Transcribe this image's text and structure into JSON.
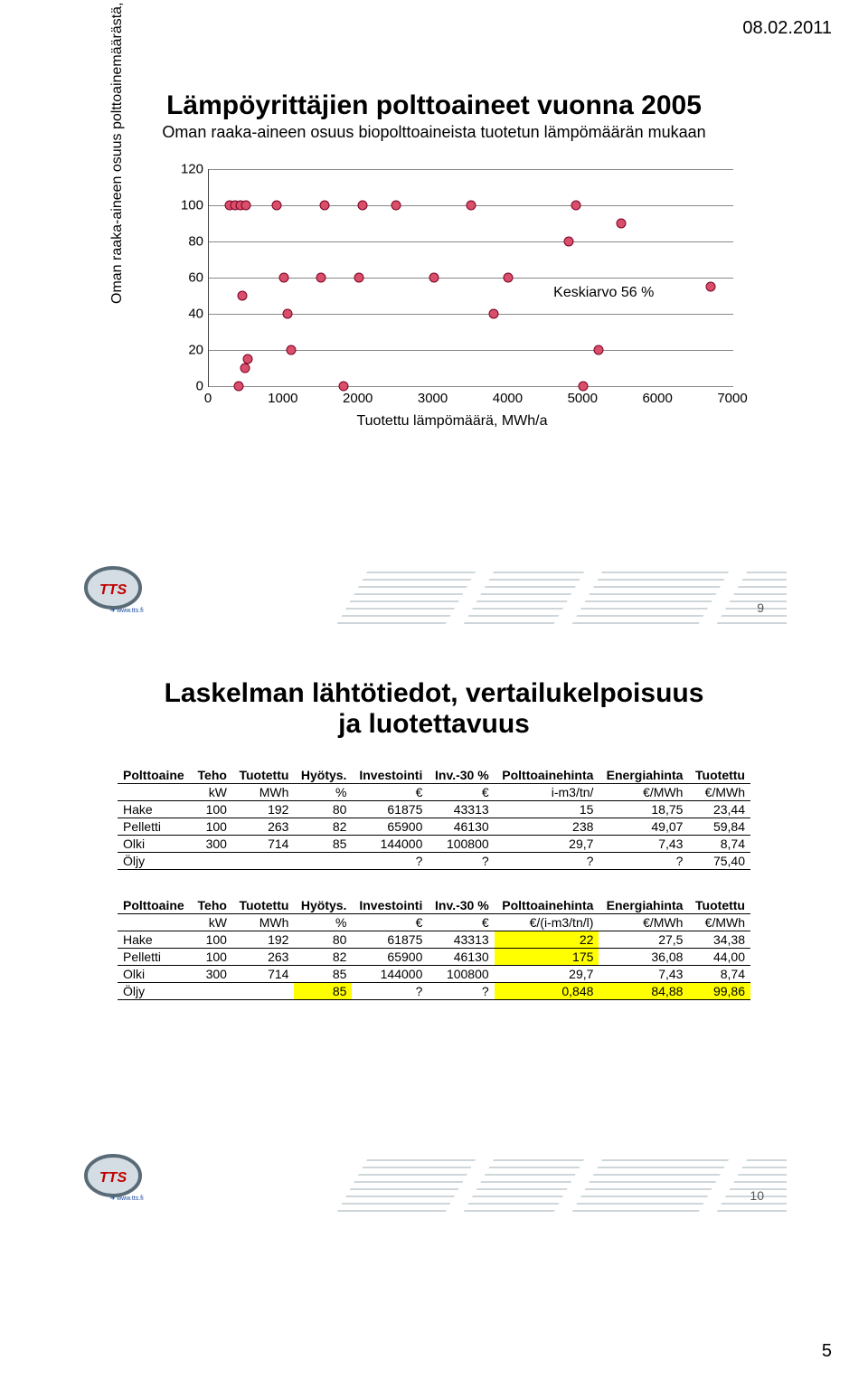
{
  "date": "08.02.2011",
  "page_number": "5",
  "slideA": {
    "title": "Lämpöyrittäjien polttoaineet vuonna 2005",
    "subtitle": "Oman raaka-aineen osuus biopolttoaineista tuotetun lämpömäärän mukaan",
    "ylabel": "Oman raaka-aineen osuus polttoainemäärästä, %",
    "xlabel": "Tuotettu lämpömäärä, MWh/a",
    "annotation": "Keskiarvo 56 %",
    "slide_num": "9",
    "chart": {
      "xlim": [
        0,
        7000
      ],
      "ylim": [
        0,
        120
      ],
      "xticks": [
        0,
        1000,
        2000,
        3000,
        4000,
        5000,
        6000,
        7000
      ],
      "yticks": [
        0,
        20,
        40,
        60,
        80,
        100,
        120
      ],
      "grid_color": "#888888",
      "marker_fill": "#d94f6a",
      "marker_border": "#7a0025",
      "points": [
        [
          280,
          100
        ],
        [
          350,
          100
        ],
        [
          400,
          0
        ],
        [
          420,
          100
        ],
        [
          450,
          50
        ],
        [
          480,
          10
        ],
        [
          500,
          100
        ],
        [
          520,
          15
        ],
        [
          900,
          100
        ],
        [
          1000,
          60
        ],
        [
          1050,
          40
        ],
        [
          1100,
          20
        ],
        [
          1500,
          60
        ],
        [
          1550,
          100
        ],
        [
          1800,
          0
        ],
        [
          2000,
          60
        ],
        [
          2050,
          100
        ],
        [
          2500,
          100
        ],
        [
          3000,
          60
        ],
        [
          3500,
          100
        ],
        [
          3800,
          40
        ],
        [
          4000,
          60
        ],
        [
          4800,
          80
        ],
        [
          4900,
          100
        ],
        [
          5000,
          0
        ],
        [
          5200,
          20
        ],
        [
          5500,
          90
        ],
        [
          6700,
          55
        ]
      ]
    }
  },
  "slideB": {
    "title": "Laskelman lähtötiedot, vertailukelpoisuus ja luotettavuus",
    "slide_num": "10",
    "table1": {
      "headers": [
        "Polttoaine",
        "Teho",
        "Tuotettu",
        "Hyötys.",
        "Investointi",
        "Inv.-30 %",
        "Polttoainehinta",
        "Energiahinta",
        "Tuotettu"
      ],
      "units": [
        "",
        "kW",
        "MWh",
        "%",
        "€",
        "€",
        "i-m3/tn/",
        "€/MWh",
        "€/MWh"
      ],
      "rows": [
        [
          "Hake",
          "100",
          "192",
          "80",
          "61875",
          "43313",
          "15",
          "18,75",
          "23,44"
        ],
        [
          "Pelletti",
          "100",
          "263",
          "82",
          "65900",
          "46130",
          "238",
          "49,07",
          "59,84"
        ],
        [
          "Olki",
          "300",
          "714",
          "85",
          "144000",
          "100800",
          "29,7",
          "7,43",
          "8,74"
        ],
        [
          "Öljy",
          "",
          "",
          "",
          "?",
          "?",
          "?",
          "?",
          "75,40"
        ]
      ]
    },
    "table2": {
      "headers": [
        "Polttoaine",
        "Teho",
        "Tuotettu",
        "Hyötys.",
        "Investointi",
        "Inv.-30 %",
        "Polttoainehinta",
        "Energiahinta",
        "Tuotettu"
      ],
      "units": [
        "",
        "kW",
        "MWh",
        "%",
        "€",
        "€",
        "€/(i-m3/tn/l)",
        "€/MWh",
        "€/MWh"
      ],
      "rows": [
        [
          "Hake",
          "100",
          "192",
          "80",
          "61875",
          "43313",
          "22",
          "27,5",
          "34,38"
        ],
        [
          "Pelletti",
          "100",
          "263",
          "82",
          "65900",
          "46130",
          "175",
          "36,08",
          "44,00"
        ],
        [
          "Olki",
          "300",
          "714",
          "85",
          "144000",
          "100800",
          "29,7",
          "7,43",
          "8,74"
        ],
        [
          "Öljy",
          "",
          "",
          "85",
          "?",
          "?",
          "0,848",
          "84,88",
          "99,86"
        ]
      ],
      "highlight_rows": {
        "0": [
          6
        ],
        "1": [
          6
        ],
        "3": [
          3,
          6,
          7,
          8
        ]
      }
    }
  }
}
